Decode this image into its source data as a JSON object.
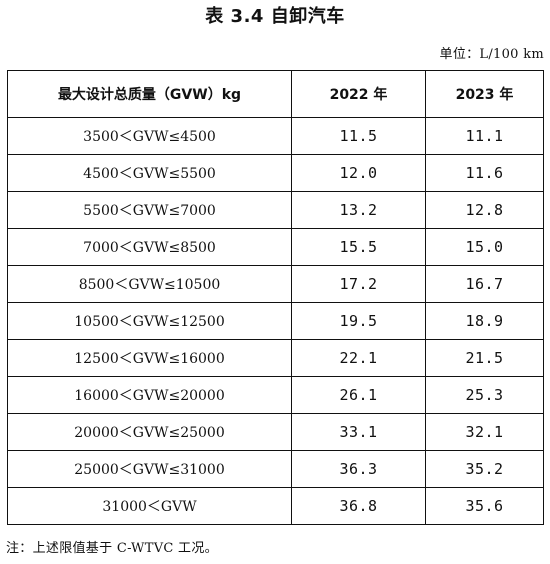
{
  "title": "表 3.4 自卸汽车",
  "unit": "单位：L/100 km",
  "table": {
    "headers": [
      "最大设计总质量（GVW）kg",
      "2022 年",
      "2023 年"
    ],
    "rows": [
      {
        "range": "3500＜GVW≤4500",
        "y2022": "11.5",
        "y2023": "11.1"
      },
      {
        "range": "4500＜GVW≤5500",
        "y2022": "12.0",
        "y2023": "11.6"
      },
      {
        "range": "5500＜GVW≤7000",
        "y2022": "13.2",
        "y2023": "12.8"
      },
      {
        "range": "7000＜GVW≤8500",
        "y2022": "15.5",
        "y2023": "15.0"
      },
      {
        "range": "8500＜GVW≤10500",
        "y2022": "17.2",
        "y2023": "16.7"
      },
      {
        "range": "10500＜GVW≤12500",
        "y2022": "19.5",
        "y2023": "18.9"
      },
      {
        "range": "12500＜GVW≤16000",
        "y2022": "22.1",
        "y2023": "21.5"
      },
      {
        "range": "16000＜GVW≤20000",
        "y2022": "26.1",
        "y2023": "25.3"
      },
      {
        "range": "20000＜GVW≤25000",
        "y2022": "33.1",
        "y2023": "32.1"
      },
      {
        "range": "25000＜GVW≤31000",
        "y2022": "36.3",
        "y2023": "35.2"
      },
      {
        "range": "31000＜GVW",
        "y2022": "36.8",
        "y2023": "35.6"
      }
    ]
  },
  "note": "注：上述限值基于 C-WTVC 工况。"
}
